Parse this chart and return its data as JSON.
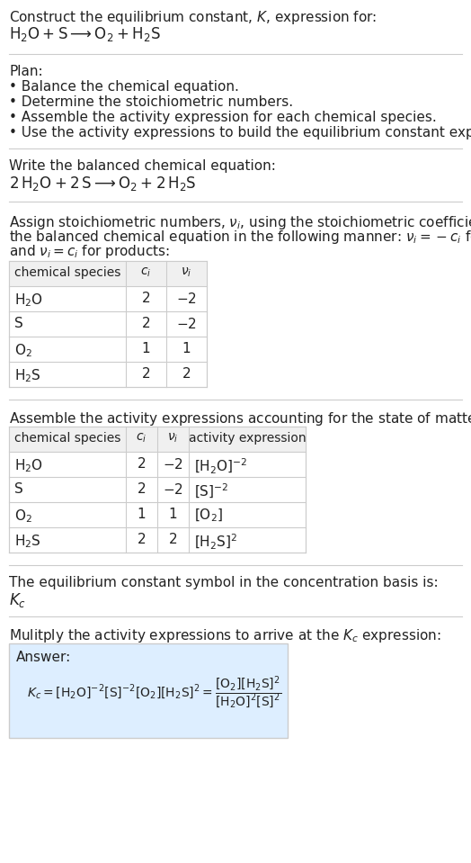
{
  "title_line1": "Construct the equilibrium constant, $K$, expression for:",
  "title_line2": "$\\mathrm{H_2O + S \\longrightarrow O_2 + H_2S}$",
  "plan_header": "Plan:",
  "plan_bullets": [
    "• Balance the chemical equation.",
    "• Determine the stoichiometric numbers.",
    "• Assemble the activity expression for each chemical species.",
    "• Use the activity expressions to build the equilibrium constant expression."
  ],
  "balanced_header": "Write the balanced chemical equation:",
  "balanced_eq": "$\\mathrm{2\\,H_2O + 2\\,S \\longrightarrow O_2 + 2\\,H_2S}$",
  "stoich_intro_parts": [
    "Assign stoichiometric numbers, $\\nu_i$, using the stoichiometric coefficients, $c_i$, from",
    "the balanced chemical equation in the following manner: $\\nu_i = -c_i$ for reactants",
    "and $\\nu_i = c_i$ for products:"
  ],
  "table1_headers": [
    "chemical species",
    "$c_i$",
    "$\\nu_i$"
  ],
  "table1_rows": [
    [
      "$\\mathrm{H_2O}$",
      "2",
      "$-2$"
    ],
    [
      "S",
      "2",
      "$-2$"
    ],
    [
      "$\\mathrm{O_2}$",
      "1",
      "1"
    ],
    [
      "$\\mathrm{H_2S}$",
      "2",
      "2"
    ]
  ],
  "activity_intro": "Assemble the activity expressions accounting for the state of matter and $\\nu_i$:",
  "table2_headers": [
    "chemical species",
    "$c_i$",
    "$\\nu_i$",
    "activity expression"
  ],
  "table2_rows": [
    [
      "$\\mathrm{H_2O}$",
      "2",
      "$-2$",
      "$[\\mathrm{H_2O}]^{-2}$"
    ],
    [
      "S",
      "2",
      "$-2$",
      "$[\\mathrm{S}]^{-2}$"
    ],
    [
      "$\\mathrm{O_2}$",
      "1",
      "1",
      "$[\\mathrm{O_2}]$"
    ],
    [
      "$\\mathrm{H_2S}$",
      "2",
      "2",
      "$[\\mathrm{H_2S}]^2$"
    ]
  ],
  "kc_text": "The equilibrium constant symbol in the concentration basis is:",
  "kc_symbol": "$K_c$",
  "multiply_text": "Mulitply the activity expressions to arrive at the $K_c$ expression:",
  "answer_label": "Answer:",
  "bg_color": "#ffffff",
  "answer_bg": "#ddeeff",
  "border_color": "#cccccc",
  "text_color": "#222222"
}
